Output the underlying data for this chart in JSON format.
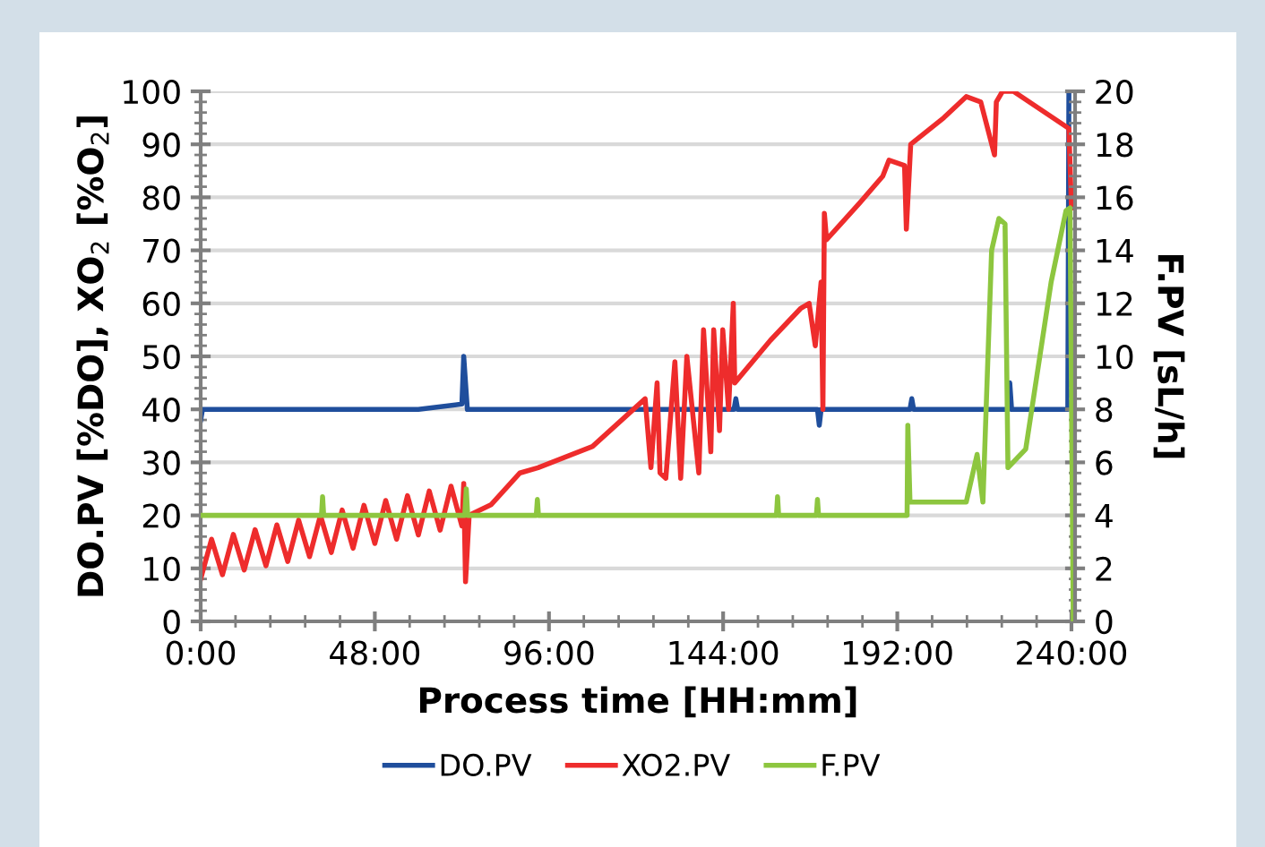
{
  "chart_data": {
    "type": "line",
    "xlabel": "Process time [HH:mm]",
    "ylabel": "DO.PV [%DO], XO$_{2}$ [%O$_{2}$]",
    "y2label": "F.PV [sL/h]",
    "xlim": [
      0,
      241
    ],
    "xticks": [
      {
        "value": 0,
        "label": "0:00"
      },
      {
        "value": 48,
        "label": "48:00"
      },
      {
        "value": 96,
        "label": "96:00"
      },
      {
        "value": 144,
        "label": "144:00"
      },
      {
        "value": 192,
        "label": "192:00"
      },
      {
        "value": 240,
        "label": "240:00"
      }
    ],
    "ylim": [
      0,
      100
    ],
    "yticks": [
      0,
      10,
      20,
      30,
      40,
      50,
      60,
      70,
      80,
      90,
      100
    ],
    "y2lim": [
      0,
      20
    ],
    "y2ticks": [
      0,
      2,
      4,
      6,
      8,
      10,
      12,
      14,
      16,
      18,
      20
    ],
    "grid": "y",
    "legend": "bottom",
    "marker": "none",
    "line_style": "solid",
    "series": [
      {
        "name": "DO.PV",
        "color": "#1f4e9c",
        "x": [
          0,
          0.5,
          10,
          20,
          30,
          40,
          50,
          60,
          72,
          72.5,
          73,
          73.5,
          74,
          100,
          130,
          147,
          147.5,
          148,
          170,
          170.5,
          171,
          195.5,
          196,
          196.5,
          222.5,
          223,
          223.5,
          239,
          239.3
        ],
        "values": [
          38,
          40,
          40,
          40,
          40,
          40,
          40,
          40,
          41,
          50,
          45,
          40,
          40,
          40,
          40,
          40,
          42,
          40,
          40,
          37,
          40,
          40,
          42,
          40,
          40,
          45,
          40,
          40,
          100
        ]
      },
      {
        "name": "XO2.PV",
        "color": "#ee2c2c",
        "x": [
          0,
          3,
          6,
          9,
          12,
          15,
          18,
          21,
          24,
          27,
          30,
          33,
          36,
          39,
          42,
          45,
          48,
          51,
          54,
          57,
          60,
          63,
          66,
          69,
          72,
          72.5,
          73,
          74,
          80,
          88,
          93,
          108,
          122.5,
          124.1,
          125.8,
          126.6,
          128.2,
          130.7,
          132.3,
          134,
          137.3,
          138.6,
          140.6,
          141.4,
          143,
          143.9,
          145.5,
          146.8,
          147.2,
          157,
          165.3,
          167.7,
          169.4,
          171,
          171.5,
          171.9,
          172.5,
          181.7,
          188,
          189.7,
          194,
          194.5,
          195.7,
          204.8,
          211,
          215,
          218.8,
          219.3,
          221,
          224,
          239.3,
          240
        ],
        "values": [
          8,
          15.5,
          8.8,
          16.4,
          9.7,
          17.3,
          10.5,
          18.2,
          11.3,
          19.1,
          12.2,
          20,
          13,
          21,
          13.8,
          21.9,
          14.7,
          22.8,
          15.5,
          23.7,
          16.3,
          24.6,
          17.2,
          25.5,
          18,
          26,
          7.5,
          20,
          22,
          28,
          29,
          33,
          42,
          29,
          45,
          28,
          27,
          49,
          27,
          50,
          28,
          55,
          32,
          55,
          36,
          55,
          40,
          60,
          45,
          53,
          59,
          60,
          52,
          64,
          40,
          77,
          72,
          79,
          84,
          87,
          86,
          74,
          90,
          95,
          99,
          98,
          88,
          98,
          100,
          100,
          93,
          78
        ]
      },
      {
        "name": "F.PV",
        "color": "#8dc63f",
        "axis": "y2",
        "x": [
          0,
          33.3,
          33.6,
          33.9,
          72.8,
          73.2,
          73.6,
          92.5,
          92.8,
          93.1,
          158.7,
          159,
          159.3,
          169.7,
          170,
          170.3,
          194.7,
          194.9,
          195.5,
          211,
          214,
          215.6,
          218,
          220,
          221.7,
          222.5,
          227.4,
          234.4,
          238.5,
          239.6,
          240.5
        ],
        "values": [
          4,
          4,
          4.7,
          4,
          4,
          5,
          4,
          4,
          4.6,
          4,
          4,
          4.7,
          4,
          4,
          4.6,
          4,
          4,
          7.4,
          4.5,
          4.5,
          6.3,
          4.5,
          14,
          15.2,
          15,
          5.8,
          6.5,
          12.8,
          15.5,
          15.6,
          0
        ]
      }
    ]
  }
}
